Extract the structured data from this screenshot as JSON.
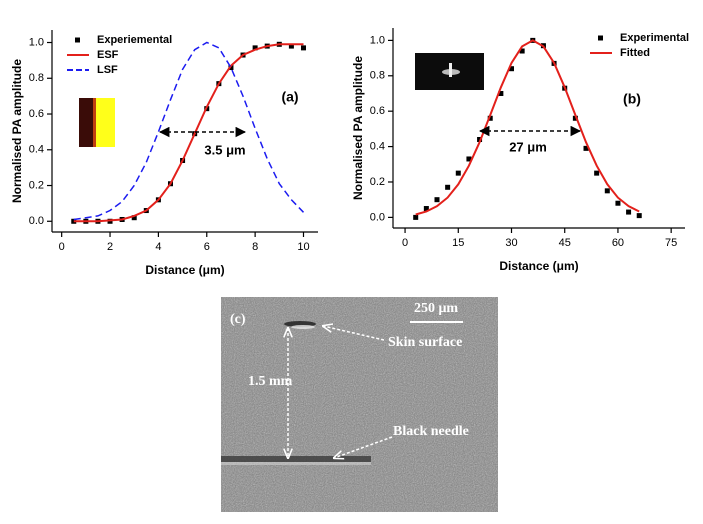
{
  "chart_data": [
    {
      "type": "line",
      "label": "(a)",
      "xlabel": "Distance (μm)",
      "ylabel": "Normalised PA amplitude",
      "annotation": "3.5 μm",
      "x": [
        0.5,
        1,
        1.5,
        2,
        2.5,
        3,
        3.5,
        4,
        4.5,
        5,
        5.5,
        6,
        6.5,
        7,
        7.5,
        8,
        8.5,
        9,
        9.5,
        10
      ],
      "series": [
        {
          "name": "Experiemental",
          "color": "#000000",
          "mode": "markers",
          "values": [
            0.0,
            0.0,
            0.0,
            0.0,
            0.01,
            0.02,
            0.06,
            0.12,
            0.21,
            0.34,
            0.49,
            0.63,
            0.77,
            0.86,
            0.93,
            0.97,
            0.98,
            0.99,
            0.98,
            0.97
          ]
        },
        {
          "name": "ESF",
          "color": "#e3201b",
          "mode": "solid",
          "values": [
            0.0,
            0.0,
            0.0,
            0.005,
            0.01,
            0.03,
            0.06,
            0.12,
            0.21,
            0.34,
            0.49,
            0.64,
            0.77,
            0.87,
            0.93,
            0.96,
            0.98,
            0.99,
            0.99,
            0.99
          ]
        },
        {
          "name": "LSF",
          "color": "#1c1cf0",
          "mode": "dashed",
          "values": [
            0.01,
            0.02,
            0.03,
            0.06,
            0.11,
            0.2,
            0.33,
            0.5,
            0.68,
            0.85,
            0.96,
            1.0,
            0.97,
            0.86,
            0.7,
            0.52,
            0.35,
            0.21,
            0.12,
            0.05
          ]
        }
      ],
      "xlim": [
        -0.4,
        10.6
      ],
      "ylim": [
        -0.06,
        1.07
      ],
      "xticks": [
        0,
        2,
        4,
        6,
        8,
        10
      ],
      "yticks": [
        {
          "value": 0,
          "label": "0.0"
        },
        0.2,
        0.4,
        0.6,
        0.8,
        {
          "value": 1,
          "label": "1.0"
        }
      ],
      "legend": "upper left"
    },
    {
      "type": "line",
      "label": "(b)",
      "xlabel": "Distance (μm)",
      "ylabel": "Normalised PA amplitude",
      "annotation": "27 μm",
      "x": [
        3,
        6,
        9,
        12,
        15,
        18,
        21,
        24,
        27,
        30,
        33,
        36,
        39,
        42,
        45,
        48,
        51,
        54,
        57,
        60,
        63,
        66
      ],
      "series": [
        {
          "name": "Experimental",
          "color": "#000000",
          "mode": "markers",
          "values": [
            0.0,
            0.05,
            0.1,
            0.17,
            0.25,
            0.33,
            0.44,
            0.56,
            0.7,
            0.84,
            0.94,
            1.0,
            0.97,
            0.87,
            0.73,
            0.56,
            0.39,
            0.25,
            0.15,
            0.08,
            0.03,
            0.01
          ]
        },
        {
          "name": "Fitted",
          "color": "#e3201b",
          "mode": "solid",
          "values": [
            0.016,
            0.033,
            0.063,
            0.112,
            0.187,
            0.292,
            0.425,
            0.578,
            0.735,
            0.872,
            0.966,
            1.0,
            0.966,
            0.872,
            0.735,
            0.578,
            0.425,
            0.292,
            0.187,
            0.112,
            0.063,
            0.033
          ]
        }
      ],
      "xlim": [
        -3.4,
        78.9
      ],
      "ylim": [
        -0.06,
        1.07
      ],
      "xticks": [
        0,
        15,
        30,
        45,
        60,
        75
      ],
      "yticks": [
        {
          "value": 0,
          "label": "0.0"
        },
        0.2,
        0.4,
        0.6,
        0.8,
        {
          "value": 1,
          "label": "1.0"
        }
      ],
      "legend": "upper right"
    }
  ],
  "image_panel": {
    "label": "(c)",
    "scale_bar": "250 μm",
    "surface_label": "Skin surface",
    "depth_label": "1.5 mm",
    "needle_label": "Black needle"
  }
}
